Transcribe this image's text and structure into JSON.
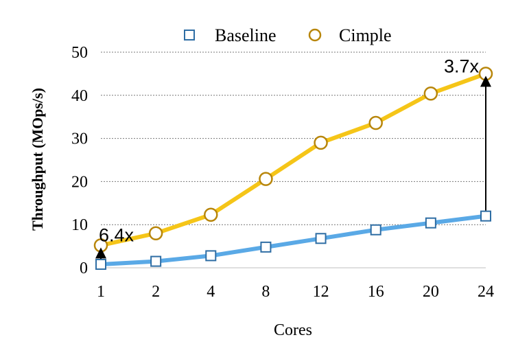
{
  "chart_data": {
    "type": "line",
    "title": "",
    "xlabel": "Cores",
    "ylabel": "Throughput (MOps/s)",
    "categories": [
      "1",
      "2",
      "4",
      "8",
      "12",
      "16",
      "20",
      "24"
    ],
    "ylim": [
      0,
      50
    ],
    "yticks": [
      "0",
      "10",
      "20",
      "30",
      "40",
      "50"
    ],
    "grid": "horizontal dotted",
    "legend_position": "top",
    "series": [
      {
        "name": "Baseline",
        "marker": "square",
        "line_color": "#5AA9E6",
        "marker_color": "#2E6DA4",
        "values": [
          0.8,
          1.5,
          2.8,
          4.8,
          6.8,
          8.8,
          10.4,
          12.0
        ]
      },
      {
        "name": "Cimple",
        "marker": "circle",
        "line_color": "#F5C518",
        "marker_color": "#B8860B",
        "values": [
          5.2,
          8.0,
          12.3,
          20.6,
          29.0,
          33.6,
          40.4,
          45.0
        ]
      }
    ],
    "annotations": [
      {
        "text": "6.4x",
        "category_index": 0,
        "from_value": 0.8,
        "to_value": 5.2
      },
      {
        "text": "3.7x",
        "category_index": 7,
        "from_value": 12.0,
        "to_value": 45.0
      }
    ]
  }
}
